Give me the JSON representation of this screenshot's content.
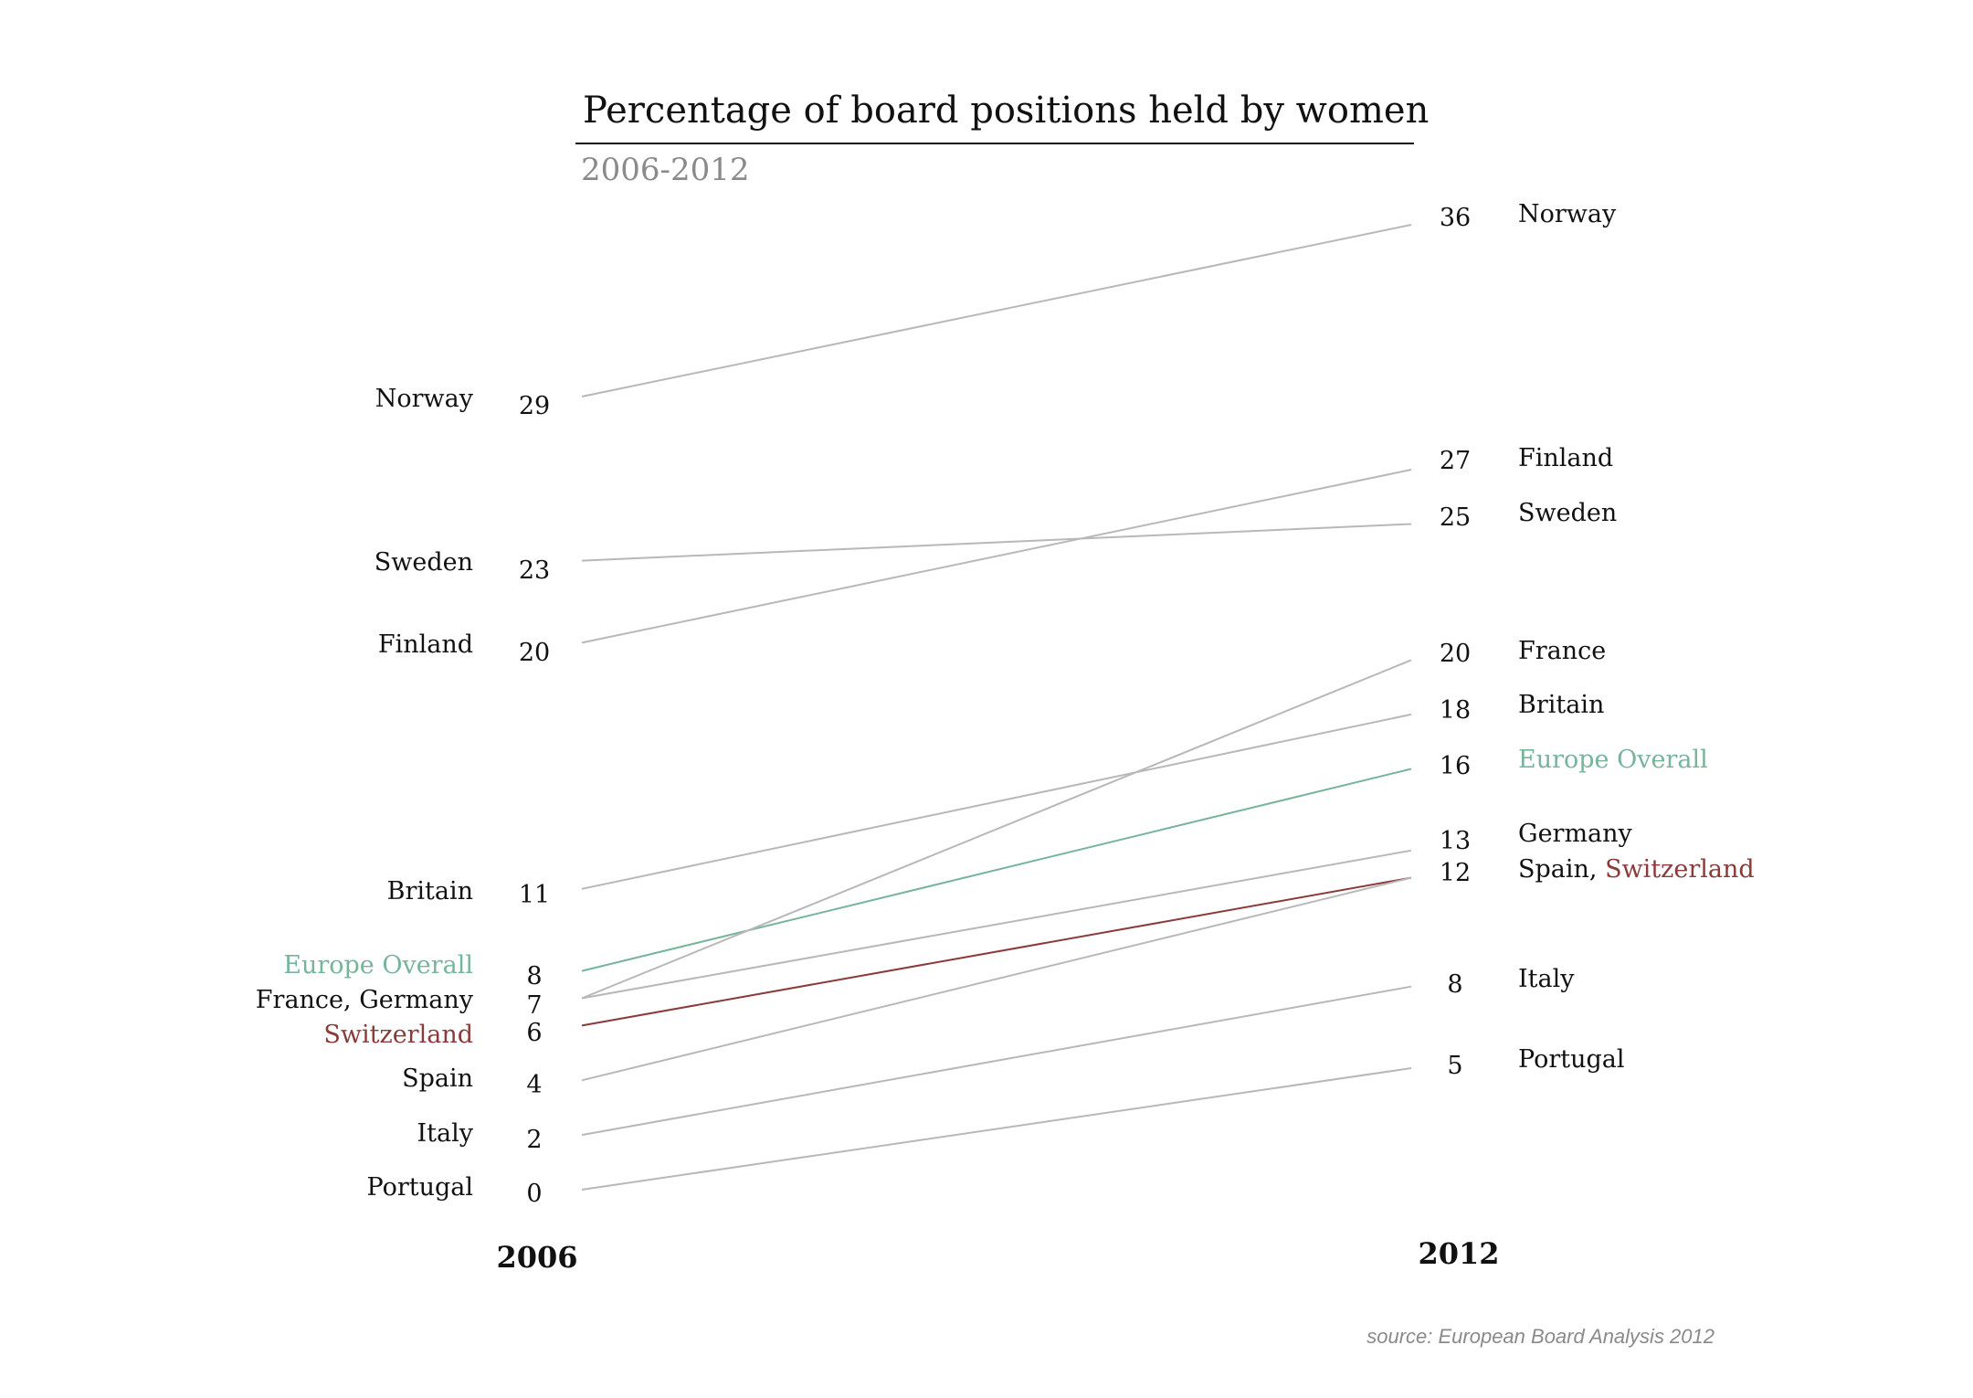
{
  "chart_data": {
    "type": "line",
    "title": "Percentage of board positions held by women",
    "subtitle": "2006-2012",
    "x": [
      "2006",
      "2012"
    ],
    "source": "source: European Board Analysis 2012",
    "ylim": [
      0,
      36
    ],
    "colors": {
      "default": "#b8b8b8",
      "Europe Overall": "#76b59a",
      "Switzerland": "#8b3a3a",
      "text": "#111111",
      "subtitle": "#8a8a8a"
    },
    "series": [
      {
        "name": "Norway",
        "values": [
          29,
          36
        ]
      },
      {
        "name": "Sweden",
        "values": [
          23,
          25
        ]
      },
      {
        "name": "Finland",
        "values": [
          20,
          27
        ]
      },
      {
        "name": "Britain",
        "values": [
          11,
          18
        ]
      },
      {
        "name": "Europe Overall",
        "values": [
          8,
          16
        ]
      },
      {
        "name": "France",
        "values": [
          7,
          20
        ]
      },
      {
        "name": "Germany",
        "values": [
          7,
          13
        ]
      },
      {
        "name": "Switzerland",
        "values": [
          6,
          12
        ]
      },
      {
        "name": "Spain",
        "values": [
          4,
          12
        ]
      },
      {
        "name": "Italy",
        "values": [
          2,
          8
        ]
      },
      {
        "name": "Portugal",
        "values": [
          0,
          5
        ]
      }
    ],
    "left_labels": [
      {
        "value": "29",
        "parts": [
          {
            "text": "Norway",
            "role": "text"
          }
        ]
      },
      {
        "value": "23",
        "parts": [
          {
            "text": "Sweden",
            "role": "text"
          }
        ]
      },
      {
        "value": "20",
        "parts": [
          {
            "text": "Finland",
            "role": "text"
          }
        ]
      },
      {
        "value": "11",
        "parts": [
          {
            "text": "Britain",
            "role": "text"
          }
        ]
      },
      {
        "value": "8",
        "parts": [
          {
            "text": "Europe Overall",
            "role": "Europe Overall"
          }
        ]
      },
      {
        "value": "7",
        "parts": [
          {
            "text": "France, Germany",
            "role": "text"
          }
        ]
      },
      {
        "value": "6",
        "parts": [
          {
            "text": "Switzerland",
            "role": "Switzerland"
          }
        ]
      },
      {
        "value": "4",
        "parts": [
          {
            "text": "Spain",
            "role": "text"
          }
        ]
      },
      {
        "value": "2",
        "parts": [
          {
            "text": "Italy",
            "role": "text"
          }
        ]
      },
      {
        "value": "0",
        "parts": [
          {
            "text": "Portugal",
            "role": "text"
          }
        ]
      }
    ],
    "right_labels": [
      {
        "value": "36",
        "parts": [
          {
            "text": "Norway",
            "role": "text"
          }
        ]
      },
      {
        "value": "27",
        "parts": [
          {
            "text": "Finland",
            "role": "text"
          }
        ]
      },
      {
        "value": "25",
        "parts": [
          {
            "text": "Sweden",
            "role": "text"
          }
        ]
      },
      {
        "value": "20",
        "parts": [
          {
            "text": "France",
            "role": "text"
          }
        ]
      },
      {
        "value": "18",
        "parts": [
          {
            "text": "Britain",
            "role": "text"
          }
        ]
      },
      {
        "value": "16",
        "parts": [
          {
            "text": "Europe Overall",
            "role": "Europe Overall"
          }
        ]
      },
      {
        "value": "13",
        "parts": [
          {
            "text": "Germany",
            "role": "text"
          }
        ]
      },
      {
        "value": "12",
        "parts": [
          {
            "text": "Spain, ",
            "role": "text"
          },
          {
            "text": "Switzerland",
            "role": "Switzerland"
          }
        ]
      },
      {
        "value": "8",
        "parts": [
          {
            "text": "Italy",
            "role": "text"
          }
        ]
      },
      {
        "value": "5",
        "parts": [
          {
            "text": "Portugal",
            "role": "text"
          }
        ]
      }
    ]
  }
}
